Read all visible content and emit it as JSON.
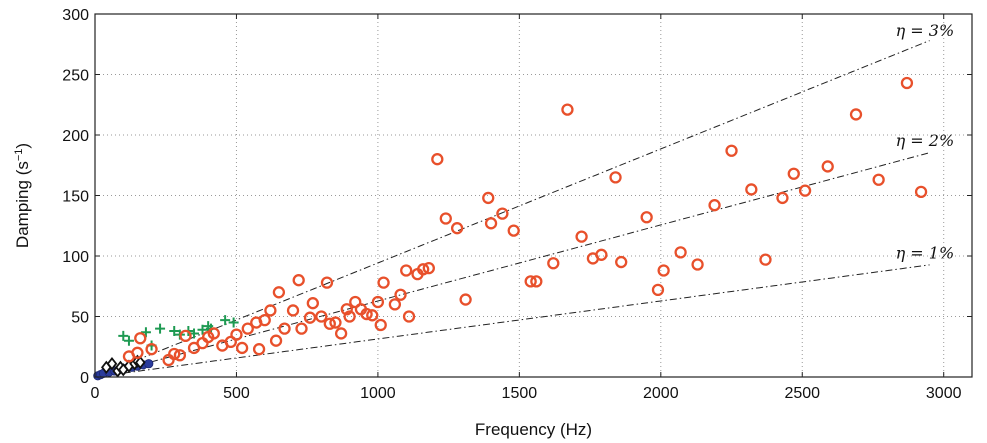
{
  "chart_data": {
    "type": "scatter",
    "title": "",
    "xlabel": "Frequency (Hz)",
    "ylabel": "Damping (s",
    "ylabel_sup": "−1",
    "ylabel_end": ")",
    "xlim": [
      0,
      3100
    ],
    "ylim": [
      0,
      300
    ],
    "xticks": [
      0,
      500,
      1000,
      1500,
      2000,
      2500,
      3000
    ],
    "yticks": [
      0,
      50,
      100,
      150,
      200,
      250,
      300
    ],
    "grid": true,
    "legend": "none",
    "reference_lines": [
      {
        "label": "η = 3%",
        "eta": 0.03,
        "label_x": 2830,
        "label_y": 282
      },
      {
        "label": "η = 2%",
        "eta": 0.02,
        "label_x": 2830,
        "label_y": 191
      },
      {
        "label": "η = 1%",
        "eta": 0.01,
        "label_x": 2830,
        "label_y": 98
      }
    ],
    "series": [
      {
        "marker": "filled-circle",
        "color": "#2a3b9c",
        "points": [
          [
            10,
            1
          ],
          [
            20,
            2
          ],
          [
            30,
            3
          ],
          [
            50,
            4
          ],
          [
            70,
            5
          ],
          [
            100,
            7
          ],
          [
            130,
            8
          ],
          [
            150,
            9
          ],
          [
            170,
            10
          ],
          [
            190,
            11
          ]
        ]
      },
      {
        "marker": "diamond",
        "color": "#111111",
        "points": [
          [
            40,
            8
          ],
          [
            60,
            11
          ],
          [
            80,
            5
          ],
          [
            90,
            8
          ],
          [
            100,
            6
          ],
          [
            120,
            9
          ],
          [
            140,
            11
          ],
          [
            150,
            13
          ],
          [
            160,
            12
          ]
        ]
      },
      {
        "marker": "plus",
        "color": "#1e9a52",
        "points": [
          [
            100,
            34
          ],
          [
            120,
            30
          ],
          [
            180,
            37
          ],
          [
            200,
            26
          ],
          [
            230,
            40
          ],
          [
            280,
            38
          ],
          [
            300,
            35
          ],
          [
            330,
            38
          ],
          [
            350,
            36
          ],
          [
            380,
            39
          ],
          [
            400,
            42
          ],
          [
            410,
            40
          ],
          [
            460,
            47
          ],
          [
            490,
            45
          ]
        ]
      },
      {
        "marker": "open-circle",
        "color": "#e8502b",
        "points": [
          [
            120,
            17
          ],
          [
            150,
            20
          ],
          [
            160,
            32
          ],
          [
            200,
            23
          ],
          [
            260,
            14
          ],
          [
            280,
            19
          ],
          [
            300,
            18
          ],
          [
            320,
            34
          ],
          [
            350,
            24
          ],
          [
            380,
            28
          ],
          [
            400,
            33
          ],
          [
            420,
            36
          ],
          [
            450,
            26
          ],
          [
            480,
            29
          ],
          [
            500,
            35
          ],
          [
            520,
            24
          ],
          [
            540,
            40
          ],
          [
            570,
            45
          ],
          [
            580,
            23
          ],
          [
            600,
            47
          ],
          [
            620,
            55
          ],
          [
            640,
            30
          ],
          [
            650,
            70
          ],
          [
            670,
            40
          ],
          [
            700,
            55
          ],
          [
            720,
            80
          ],
          [
            730,
            40
          ],
          [
            760,
            49
          ],
          [
            770,
            61
          ],
          [
            800,
            50
          ],
          [
            820,
            78
          ],
          [
            830,
            44
          ],
          [
            850,
            45
          ],
          [
            870,
            36
          ],
          [
            890,
            56
          ],
          [
            900,
            50
          ],
          [
            920,
            62
          ],
          [
            940,
            56
          ],
          [
            960,
            52
          ],
          [
            980,
            51
          ],
          [
            1000,
            62
          ],
          [
            1010,
            43
          ],
          [
            1020,
            78
          ],
          [
            1060,
            60
          ],
          [
            1080,
            68
          ],
          [
            1100,
            88
          ],
          [
            1110,
            50
          ],
          [
            1140,
            85
          ],
          [
            1160,
            89
          ],
          [
            1180,
            90
          ],
          [
            1210,
            180
          ],
          [
            1240,
            131
          ],
          [
            1280,
            123
          ],
          [
            1310,
            64
          ],
          [
            1390,
            148
          ],
          [
            1400,
            127
          ],
          [
            1440,
            135
          ],
          [
            1480,
            121
          ],
          [
            1540,
            79
          ],
          [
            1560,
            79
          ],
          [
            1620,
            94
          ],
          [
            1670,
            221
          ],
          [
            1720,
            116
          ],
          [
            1760,
            98
          ],
          [
            1790,
            101
          ],
          [
            1840,
            165
          ],
          [
            1860,
            95
          ],
          [
            1950,
            132
          ],
          [
            1990,
            72
          ],
          [
            2010,
            88
          ],
          [
            2070,
            103
          ],
          [
            2130,
            93
          ],
          [
            2190,
            142
          ],
          [
            2250,
            187
          ],
          [
            2320,
            155
          ],
          [
            2370,
            97
          ],
          [
            2430,
            148
          ],
          [
            2470,
            168
          ],
          [
            2510,
            154
          ],
          [
            2590,
            174
          ],
          [
            2690,
            217
          ],
          [
            2770,
            163
          ],
          [
            2870,
            243
          ],
          [
            2920,
            153
          ]
        ]
      }
    ]
  }
}
